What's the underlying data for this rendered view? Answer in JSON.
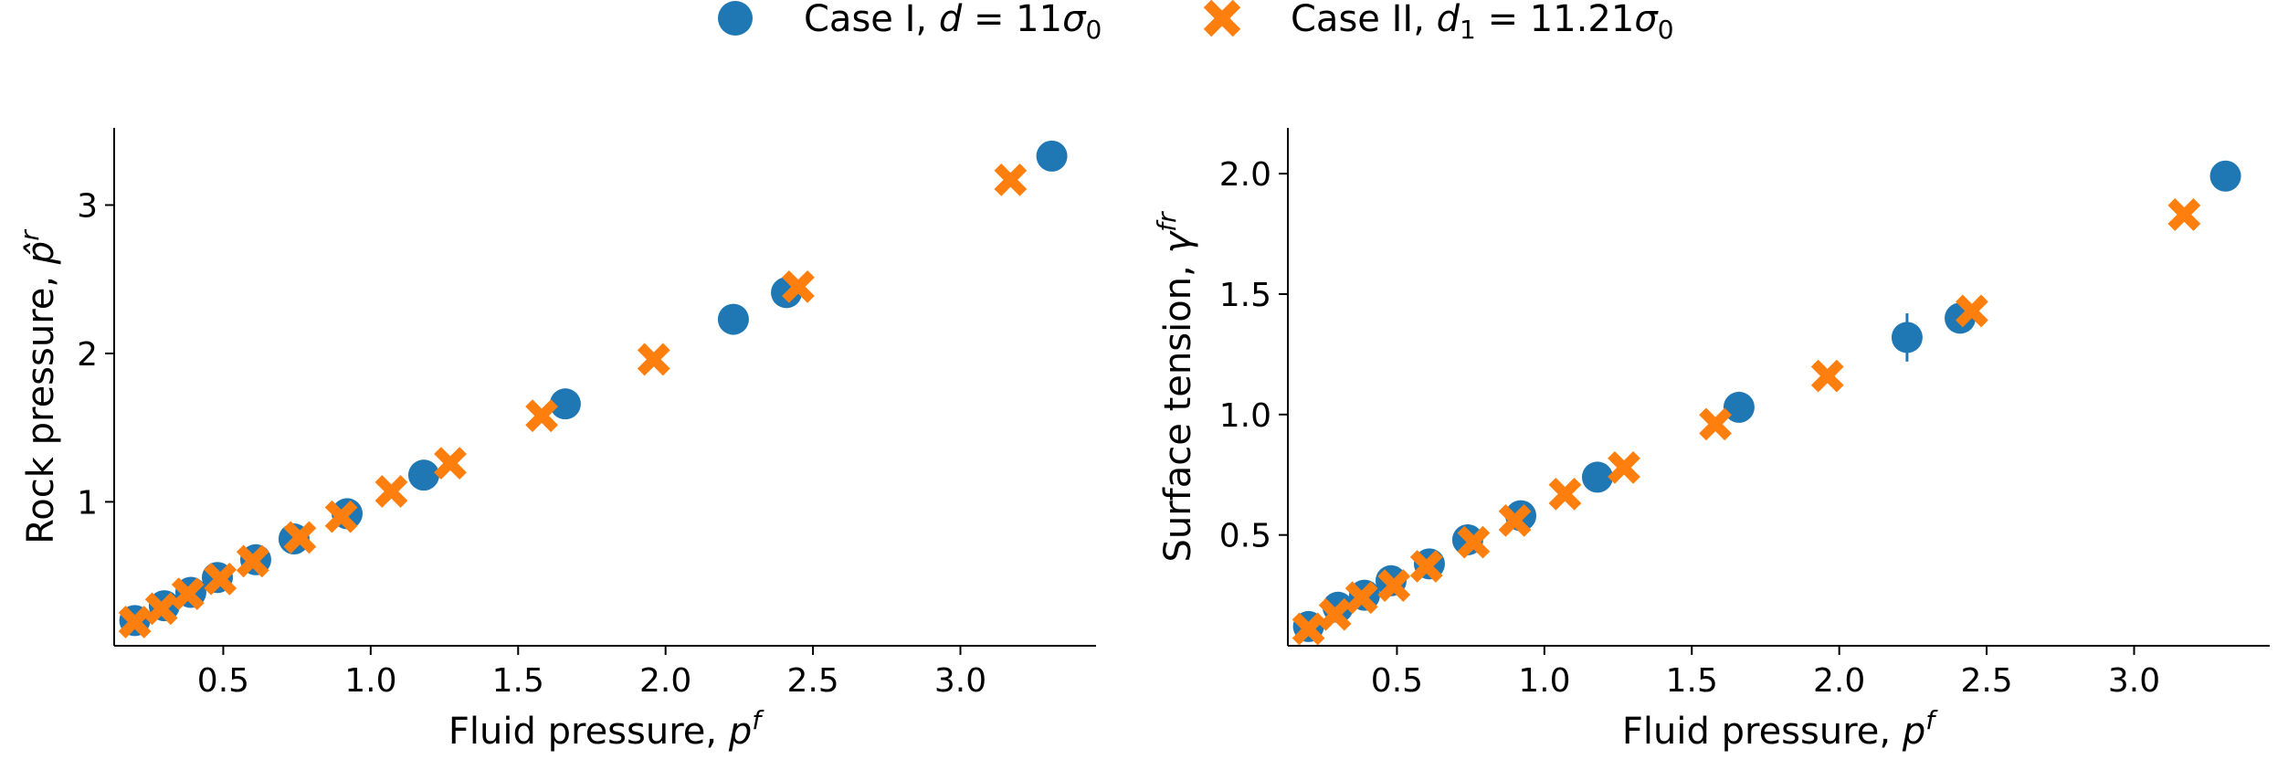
{
  "legend": {
    "case1": {
      "label": "Case I, ",
      "math": "d",
      "eq": " = 11",
      "sym": "σ",
      "sub": "0"
    },
    "case2": {
      "label": "Case II, ",
      "math": "d",
      "math_sub": "1",
      "eq": " = 11.21",
      "sym": "σ",
      "sub": "0"
    }
  },
  "colors": {
    "case1": "#1f77b4",
    "case2": "#ff7f0e"
  },
  "chart_data": [
    {
      "type": "scatter",
      "xlabel": {
        "text": "Fluid pressure, ",
        "math": "p",
        "sup": "f"
      },
      "ylabel": {
        "text": "Rock pressure, ",
        "math": "p̂",
        "sup": "r"
      },
      "xticks": [
        "0.5",
        "1.0",
        "1.5",
        "2.0",
        "2.5",
        "3.0"
      ],
      "xtick_values": [
        0.5,
        1.0,
        1.5,
        2.0,
        2.5,
        3.0
      ],
      "yticks": [
        "1",
        "2",
        "3"
      ],
      "ytick_values": [
        1,
        2,
        3
      ],
      "xlim": [
        0.13,
        3.46
      ],
      "ylim": [
        0.03,
        3.52
      ],
      "grid": false,
      "series": [
        {
          "name": "Case I, d = 11σ0",
          "marker": "circle",
          "x": [
            0.2,
            0.3,
            0.39,
            0.48,
            0.61,
            0.74,
            0.92,
            1.18,
            1.66,
            2.23,
            2.41,
            3.31
          ],
          "y": [
            0.2,
            0.3,
            0.39,
            0.49,
            0.61,
            0.75,
            0.92,
            1.18,
            1.66,
            2.23,
            2.41,
            3.33
          ]
        },
        {
          "name": "Case II, d1 = 11.21σ0",
          "marker": "x",
          "x": [
            0.2,
            0.29,
            0.38,
            0.49,
            0.6,
            0.76,
            0.9,
            1.07,
            1.27,
            1.58,
            1.96,
            2.45,
            3.17
          ],
          "y": [
            0.19,
            0.28,
            0.38,
            0.48,
            0.6,
            0.76,
            0.9,
            1.07,
            1.26,
            1.58,
            1.96,
            2.45,
            3.17
          ]
        }
      ]
    },
    {
      "type": "scatter",
      "xlabel": {
        "text": "Fluid pressure, ",
        "math": "p",
        "sup": "f"
      },
      "ylabel": {
        "text": "Surface tension, ",
        "math": "γ",
        "sup": "fr"
      },
      "xticks": [
        "0.5",
        "1.0",
        "1.5",
        "2.0",
        "2.5",
        "3.0"
      ],
      "xtick_values": [
        0.5,
        1.0,
        1.5,
        2.0,
        2.5,
        3.0
      ],
      "yticks": [
        "0.5",
        "1.0",
        "1.5",
        "2.0"
      ],
      "ytick_values": [
        0.5,
        1.0,
        1.5,
        2.0
      ],
      "xlim": [
        0.13,
        3.46
      ],
      "ylim": [
        0.04,
        2.19
      ],
      "grid": false,
      "series": [
        {
          "name": "Case I, d = 11σ0",
          "marker": "circle",
          "x": [
            0.2,
            0.3,
            0.39,
            0.48,
            0.61,
            0.74,
            0.92,
            1.18,
            1.66,
            2.23,
            2.41,
            3.31
          ],
          "y": [
            0.12,
            0.2,
            0.25,
            0.31,
            0.38,
            0.48,
            0.58,
            0.74,
            1.03,
            1.32,
            1.4,
            1.99
          ],
          "yerr": [
            0.01,
            0.01,
            0.01,
            0.02,
            0.02,
            0.02,
            0.02,
            0.02,
            0.03,
            0.1,
            0.03,
            0.06
          ]
        },
        {
          "name": "Case II, d1 = 11.21σ0",
          "marker": "x",
          "x": [
            0.2,
            0.29,
            0.38,
            0.49,
            0.6,
            0.76,
            0.9,
            1.07,
            1.27,
            1.58,
            1.96,
            2.45,
            3.17
          ],
          "y": [
            0.11,
            0.17,
            0.24,
            0.29,
            0.37,
            0.47,
            0.56,
            0.67,
            0.78,
            0.96,
            1.16,
            1.43,
            1.83
          ]
        }
      ]
    }
  ]
}
